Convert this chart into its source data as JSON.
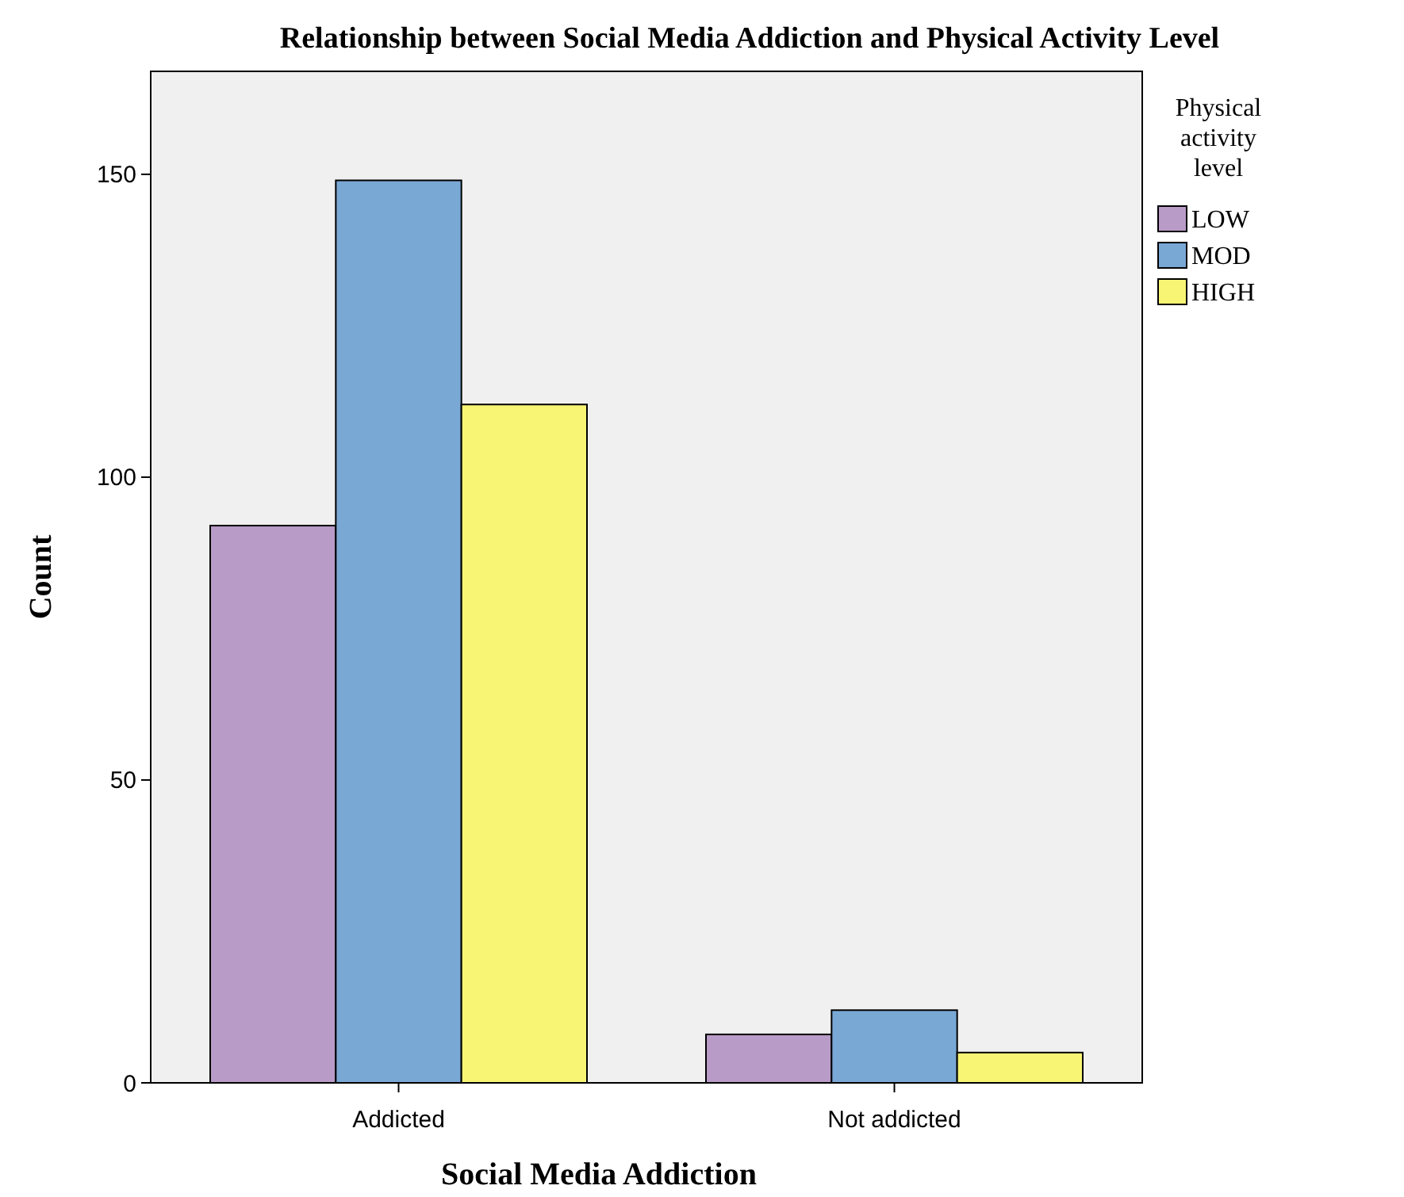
{
  "chart_data": {
    "type": "bar",
    "title": "Relationship between Social Media Addiction and Physical Activity Level",
    "xlabel": "Social Media Addiction",
    "ylabel": "Count",
    "legend_title": "Physical activity level",
    "categories": [
      "Addicted",
      "Not addicted"
    ],
    "series": [
      {
        "name": "LOW",
        "color": "#b99bc8",
        "values": [
          92,
          8
        ]
      },
      {
        "name": "MOD",
        "color": "#7aa8d5",
        "values": [
          149,
          12
        ]
      },
      {
        "name": "HIGH",
        "color": "#f8f575",
        "values": [
          112,
          5
        ]
      }
    ],
    "ylim": [
      0,
      167
    ],
    "yticks": [
      0,
      50,
      100,
      150
    ],
    "grid": false,
    "legend": "right"
  }
}
